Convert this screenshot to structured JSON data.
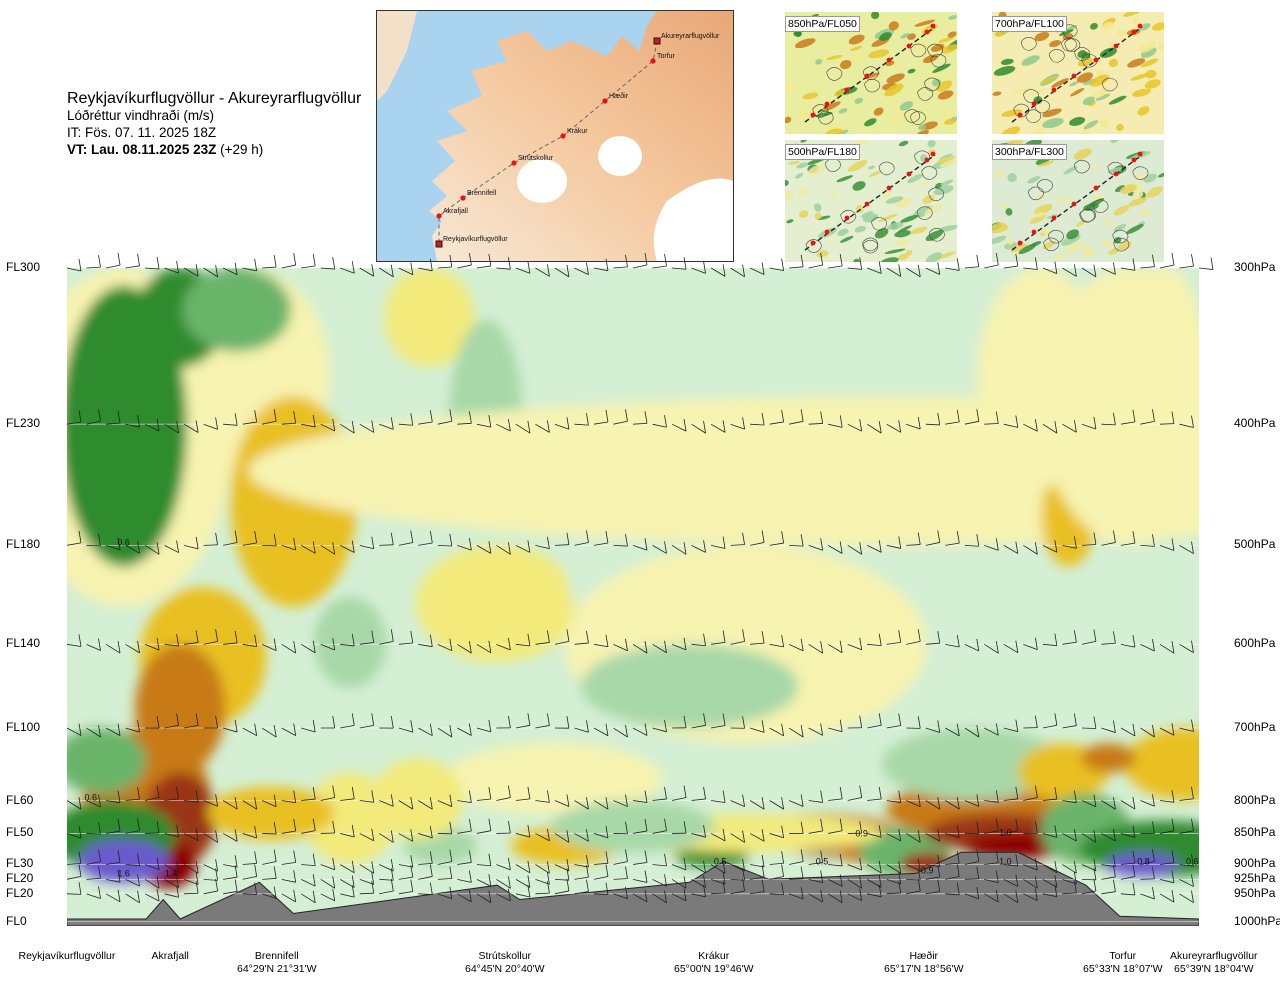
{
  "header": {
    "route": "Reykjavíkurflugvöllur - Akureyrarflugvöllur",
    "variable": "Lóðréttur vindhraði (m/s)",
    "issue": "IT: Fös. 07. 11. 2025 18Z",
    "valid_bold": "VT: Lau. 08.11.2025 23Z",
    "valid_offset": "(+29 h)"
  },
  "map": {
    "points": [
      {
        "name": "Akureyrarflugvöllur"
      },
      {
        "name": "Torfur"
      },
      {
        "name": "Hæðir"
      },
      {
        "name": "Krákur"
      },
      {
        "name": "Strútskollur"
      },
      {
        "name": "Brennifell"
      },
      {
        "name": "Akrafjall"
      },
      {
        "name": "Reykjavíkurflugvöllur"
      }
    ]
  },
  "thumbnails": [
    {
      "label": "850hPa/FL050"
    },
    {
      "label": "700hPa/FL100"
    },
    {
      "label": "500hPa/FL180"
    },
    {
      "label": "300hPa/FL300"
    }
  ],
  "chart_data": {
    "type": "heatmap",
    "title": "Reykjavíkurflugvöllur - Akureyrarflugvöllur",
    "variable": "Lóðréttur vindhraði (m/s)",
    "levels": [
      {
        "fl": "FL300",
        "hpa": "300hPa",
        "p": 300
      },
      {
        "fl": "FL230",
        "hpa": "400hPa",
        "p": 400
      },
      {
        "fl": "FL180",
        "hpa": "500hPa",
        "p": 500
      },
      {
        "fl": "FL140",
        "hpa": "600hPa",
        "p": 600
      },
      {
        "fl": "FL100",
        "hpa": "700hPa",
        "p": 700
      },
      {
        "fl": "FL60",
        "hpa": "800hPa",
        "p": 800
      },
      {
        "fl": "FL50",
        "hpa": "850hPa",
        "p": 850
      },
      {
        "fl": "FL30",
        "hpa": "900hPa",
        "p": 900
      },
      {
        "fl": "FL20",
        "hpa": "925hPa",
        "p": 925
      },
      {
        "fl": "FL20",
        "hpa": "950hPa",
        "p": 950
      },
      {
        "fl": "FL0",
        "hpa": "1000hPa",
        "p": 1000
      }
    ],
    "stations": [
      {
        "name": "Reykjavíkurflugvöllur",
        "coord": "",
        "dist": 0
      },
      {
        "name": "Akrafjall",
        "coord": "",
        "dist": 0.074
      },
      {
        "name": "Brennifell",
        "coord": "64°29'N 21°31'W",
        "dist": 0.188
      },
      {
        "name": "Strútskollur",
        "coord": "64°45'N 20°40'W",
        "dist": 0.382
      },
      {
        "name": "Krákur",
        "coord": "65°00'N 19°46'W",
        "dist": 0.574
      },
      {
        "name": "Hæðir",
        "coord": "65°17'N 18°56'W",
        "dist": 0.784
      },
      {
        "name": "Torfur",
        "coord": "65°33'N 18°07'W",
        "dist": 0.929
      },
      {
        "name": "Akureyrarflugvöllur",
        "coord": "65°39'N 18°04'W",
        "dist": 1.0
      }
    ],
    "value_labels": [
      {
        "text": "0.6",
        "dist": 0.05,
        "p": 500
      },
      {
        "text": "0.6",
        "dist": 0.021,
        "p": 800
      },
      {
        "text": "1.6",
        "dist": 0.05,
        "p": 920
      },
      {
        "text": "1.4",
        "dist": 0.092,
        "p": 920
      },
      {
        "text": "0.5",
        "dist": 0.577,
        "p": 900
      },
      {
        "text": "0.5",
        "dist": 0.667,
        "p": 900
      },
      {
        "text": "0.9",
        "dist": 0.702,
        "p": 855
      },
      {
        "text": "0.9",
        "dist": 0.76,
        "p": 915
      },
      {
        "text": "1.0",
        "dist": 0.829,
        "p": 900
      },
      {
        "text": "1.0",
        "dist": 0.829,
        "p": 853
      },
      {
        "text": "0.8",
        "dist": 0.951,
        "p": 900
      },
      {
        "text": "0.6",
        "dist": 0.994,
        "p": 900
      }
    ],
    "terrain_peaks_hpa": [
      {
        "dist": 0.0,
        "p": 995
      },
      {
        "dist": 0.07,
        "p": 995
      },
      {
        "dist": 0.085,
        "p": 960
      },
      {
        "dist": 0.1,
        "p": 995
      },
      {
        "dist": 0.17,
        "p": 930
      },
      {
        "dist": 0.2,
        "p": 985
      },
      {
        "dist": 0.38,
        "p": 935
      },
      {
        "dist": 0.4,
        "p": 960
      },
      {
        "dist": 0.55,
        "p": 930
      },
      {
        "dist": 0.58,
        "p": 895
      },
      {
        "dist": 0.62,
        "p": 925
      },
      {
        "dist": 0.75,
        "p": 915
      },
      {
        "dist": 0.79,
        "p": 880
      },
      {
        "dist": 0.84,
        "p": 880
      },
      {
        "dist": 0.9,
        "p": 935
      },
      {
        "dist": 0.93,
        "p": 990
      },
      {
        "dist": 1.0,
        "p": 995
      }
    ],
    "colorscale": [
      {
        "value": -1.5,
        "color": "#8b0000"
      },
      {
        "value": -1.0,
        "color": "#9a3412"
      },
      {
        "value": -0.6,
        "color": "#c77a14"
      },
      {
        "value": -0.3,
        "color": "#e9c020"
      },
      {
        "value": -0.15,
        "color": "#f2ea7a"
      },
      {
        "value": -0.05,
        "color": "#f7f3b0"
      },
      {
        "value": 0.0,
        "color": "#fdfbe8"
      },
      {
        "value": 0.05,
        "color": "#d4efd4"
      },
      {
        "value": 0.15,
        "color": "#a8d8a8"
      },
      {
        "value": 0.3,
        "color": "#6ab46a"
      },
      {
        "value": 0.6,
        "color": "#2e8b2e"
      },
      {
        "value": 1.0,
        "color": "#16703a"
      },
      {
        "value": 1.5,
        "color": "#6a5acd"
      }
    ],
    "xlabel": "",
    "ylabel": "",
    "grid": false,
    "legend": "none"
  }
}
